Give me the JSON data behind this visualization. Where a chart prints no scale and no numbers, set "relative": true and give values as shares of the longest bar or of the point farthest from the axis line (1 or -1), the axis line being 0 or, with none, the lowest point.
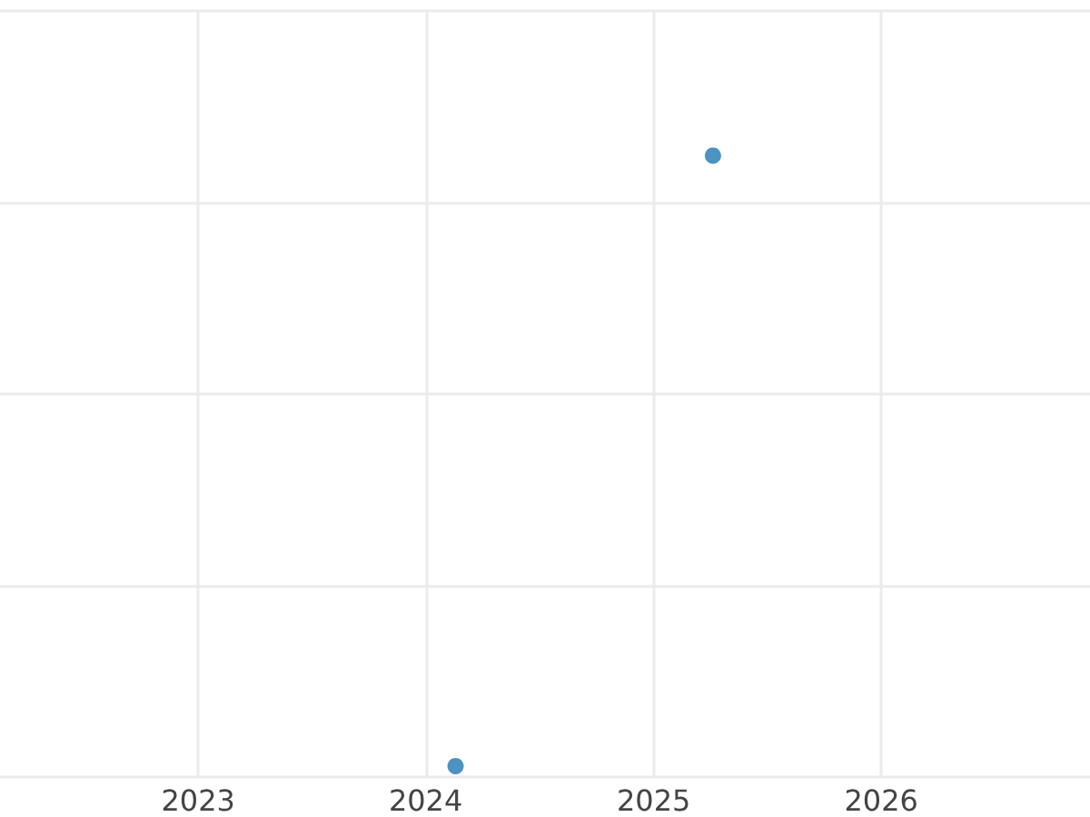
{
  "chart_data": {
    "type": "scatter",
    "relative": true,
    "x": [
      "2024-02-18",
      "2025-04-06"
    ],
    "series": [
      {
        "color": "#1f77b4",
        "values": [
          0,
          1
        ]
      }
    ],
    "xlim": [
      "2022-02-17",
      "2026-12-02"
    ],
    "xticks": [
      "2023",
      "2024",
      "2025",
      "2026"
    ],
    "grid": true,
    "marker": "circle"
  }
}
